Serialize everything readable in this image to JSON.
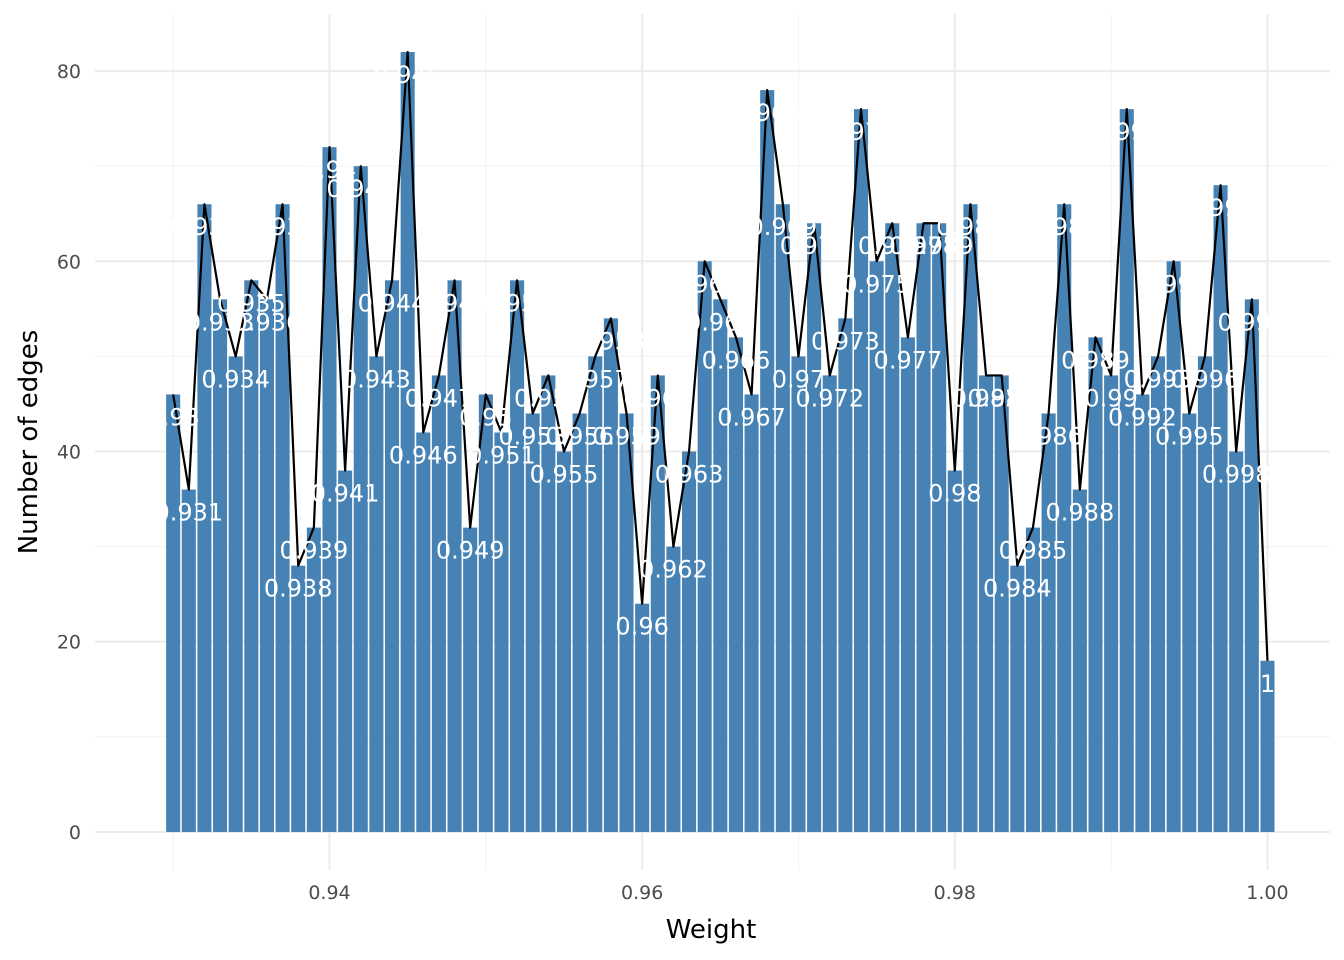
{
  "chart_data": {
    "type": "bar",
    "xlabel": "Weight",
    "ylabel": "Number of edges",
    "xlim": [
      0.925,
      1.004
    ],
    "ylim": [
      -4,
      86
    ],
    "x_ticks": [
      0.94,
      0.96,
      0.98,
      1.0
    ],
    "x_tick_labels": [
      "0.94",
      "0.96",
      "0.98",
      "1.00"
    ],
    "y_ticks": [
      0,
      20,
      40,
      60,
      80
    ],
    "y_tick_labels": [
      "0",
      "20",
      "40",
      "60",
      "80"
    ],
    "grid": true,
    "bar_color": "#4682b4",
    "line_color": "#000000",
    "overlay": "line connecting bar tops",
    "x": [
      0.93,
      0.931,
      0.932,
      0.933,
      0.934,
      0.935,
      0.936,
      0.937,
      0.938,
      0.939,
      0.94,
      0.941,
      0.942,
      0.943,
      0.944,
      0.945,
      0.946,
      0.947,
      0.948,
      0.949,
      0.95,
      0.951,
      0.952,
      0.953,
      0.954,
      0.955,
      0.956,
      0.957,
      0.958,
      0.959,
      0.96,
      0.961,
      0.962,
      0.963,
      0.964,
      0.965,
      0.966,
      0.967,
      0.968,
      0.969,
      0.97,
      0.971,
      0.972,
      0.973,
      0.974,
      0.975,
      0.976,
      0.977,
      0.978,
      0.979,
      0.98,
      0.981,
      0.982,
      0.983,
      0.984,
      0.985,
      0.986,
      0.987,
      0.988,
      0.989,
      0.99,
      0.991,
      0.992,
      0.993,
      0.994,
      0.995,
      0.996,
      0.997,
      0.998,
      0.999,
      1.0
    ],
    "values": [
      46,
      36,
      66,
      56,
      50,
      58,
      56,
      66,
      28,
      32,
      72,
      38,
      70,
      50,
      58,
      82,
      42,
      48,
      58,
      32,
      46,
      42,
      58,
      44,
      48,
      40,
      44,
      50,
      54,
      44,
      24,
      48,
      30,
      40,
      60,
      56,
      52,
      46,
      78,
      66,
      50,
      64,
      48,
      54,
      76,
      60,
      64,
      52,
      64,
      64,
      38,
      66,
      48,
      48,
      28,
      32,
      44,
      66,
      36,
      52,
      48,
      76,
      46,
      50,
      60,
      44,
      50,
      68,
      40,
      56,
      18
    ],
    "labels": [
      "0.93",
      "0.931",
      "0.932",
      "0.933",
      "0.934",
      "0.935",
      "0.936",
      "0.937",
      "0.938",
      "0.939",
      "0.94",
      "0.941",
      "0.942",
      "0.943",
      "0.944",
      "0.945",
      "0.946",
      "0.947",
      "0.948",
      "0.949",
      "0.95",
      "0.951",
      "0.952",
      "0.953",
      "0.954",
      "0.955",
      "0.956",
      "0.957",
      "0.958",
      "0.959",
      "0.96",
      "0.961",
      "0.962",
      "0.963",
      "0.964",
      "0.965",
      "0.966",
      "0.967",
      "0.968",
      "0.969",
      "0.97",
      "0.971",
      "0.972",
      "0.973",
      "0.974",
      "0.975",
      "0.976",
      "0.977",
      "0.978",
      "0.979",
      "0.98",
      "0.981",
      "0.982",
      "0.983",
      "0.984",
      "0.985",
      "0.986",
      "0.987",
      "0.988",
      "0.989",
      "0.99",
      "0.991",
      "0.992",
      "0.993",
      "0.994",
      "0.995",
      "0.996",
      "0.997",
      "0.998",
      "0.999",
      "1"
    ]
  }
}
